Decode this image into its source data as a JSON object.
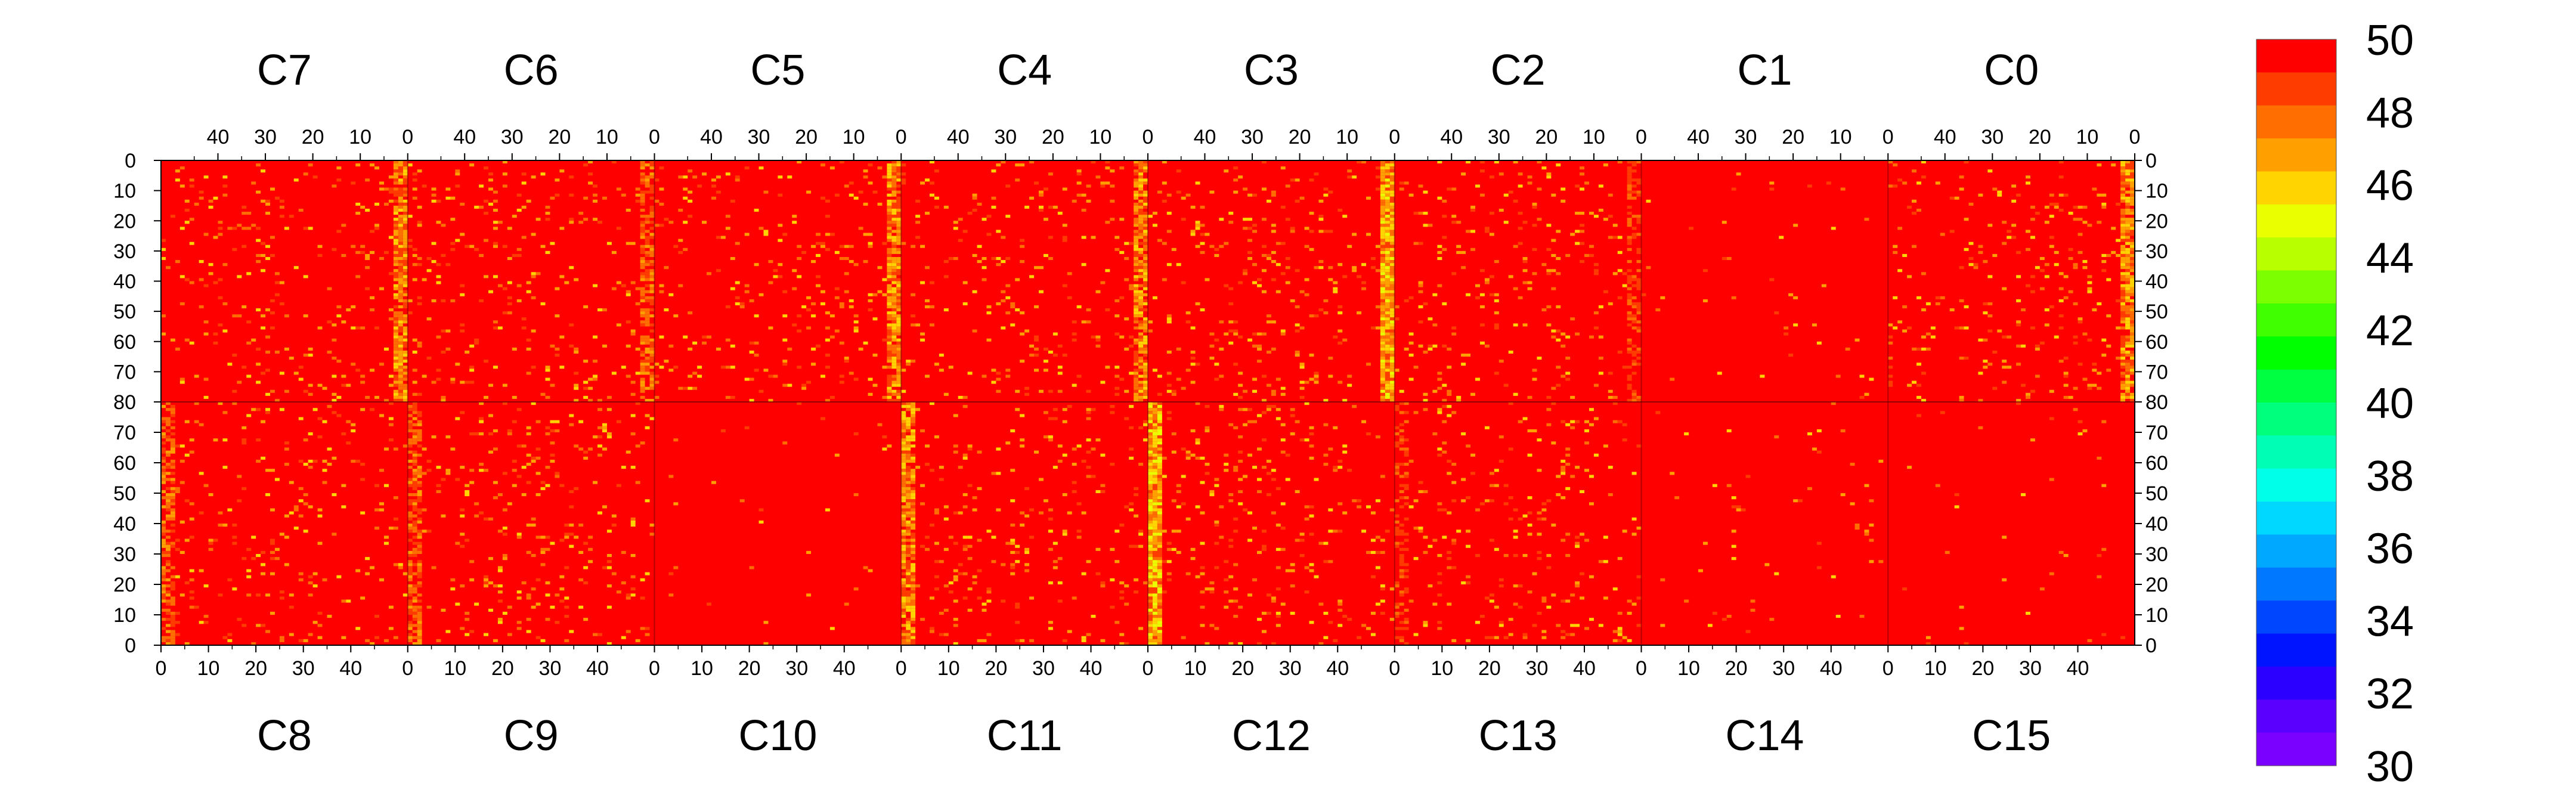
{
  "chart_data": {
    "type": "heatmap",
    "title": "",
    "xlabel": "",
    "ylabel": "",
    "top_chip_labels": [
      "C7",
      "C6",
      "C5",
      "C4",
      "C3",
      "C2",
      "C1",
      "C0"
    ],
    "bottom_chip_labels": [
      "C8",
      "C9",
      "C10",
      "C11",
      "C12",
      "C13",
      "C14",
      "C15"
    ],
    "top_x_ticks": [
      "40",
      "30",
      "20",
      "10",
      "0"
    ],
    "bottom_x_ticks": [
      "0",
      "10",
      "20",
      "30",
      "40"
    ],
    "top_y_ticks": [
      "0",
      "10",
      "20",
      "30",
      "40",
      "50",
      "60",
      "70",
      "80"
    ],
    "bottom_y_ticks": [
      "80",
      "70",
      "60",
      "50",
      "40",
      "30",
      "20",
      "10",
      "0"
    ],
    "columns_per_chip": 52,
    "rows_per_half": 80,
    "xlim": [
      0,
      52
    ],
    "ylim": [
      0,
      80
    ],
    "zlim": [
      30,
      50
    ],
    "colorbar": {
      "ticks": [
        "50",
        "48",
        "46",
        "44",
        "42",
        "40",
        "38",
        "36",
        "34",
        "32",
        "30"
      ],
      "levels": [
        30,
        31,
        32,
        33,
        34,
        35,
        36,
        37,
        38,
        39,
        40,
        41,
        42,
        43,
        44,
        45,
        46,
        47,
        48,
        49,
        50
      ],
      "colors": [
        "#7a00ff",
        "#5a00ff",
        "#2b00ff",
        "#0014ff",
        "#0046ff",
        "#0078ff",
        "#00a8ff",
        "#00d8ff",
        "#00ffe8",
        "#00ffb4",
        "#00ff7c",
        "#00ff40",
        "#00ff00",
        "#40ff00",
        "#7cff00",
        "#b8ff00",
        "#eaff00",
        "#ffd400",
        "#ffa000",
        "#ff6e00",
        "#ff3c00",
        "#ff0000"
      ]
    },
    "background_value": 50,
    "hot_columns": [
      {
        "chip": "C7",
        "column": 0,
        "typical_value": 47
      },
      {
        "chip": "C6",
        "column": 0,
        "typical_value": 48
      },
      {
        "chip": "C5",
        "column": 0,
        "typical_value": 47
      },
      {
        "chip": "C4",
        "column": 0,
        "typical_value": 47
      },
      {
        "chip": "C3",
        "column": 0,
        "typical_value": 46
      },
      {
        "chip": "C2",
        "column": 0,
        "typical_value": 49
      },
      {
        "chip": "C0",
        "column": 0,
        "typical_value": 47
      },
      {
        "chip": "C8",
        "column": 0,
        "typical_value": 48
      },
      {
        "chip": "C9",
        "column": 0,
        "typical_value": 48
      },
      {
        "chip": "C11",
        "column": 0,
        "typical_value": 47
      },
      {
        "chip": "C12",
        "column": 0,
        "typical_value": 46
      },
      {
        "chip": "C13",
        "column": 0,
        "typical_value": 49
      }
    ],
    "grid": false,
    "legend": "colorbar-right"
  }
}
